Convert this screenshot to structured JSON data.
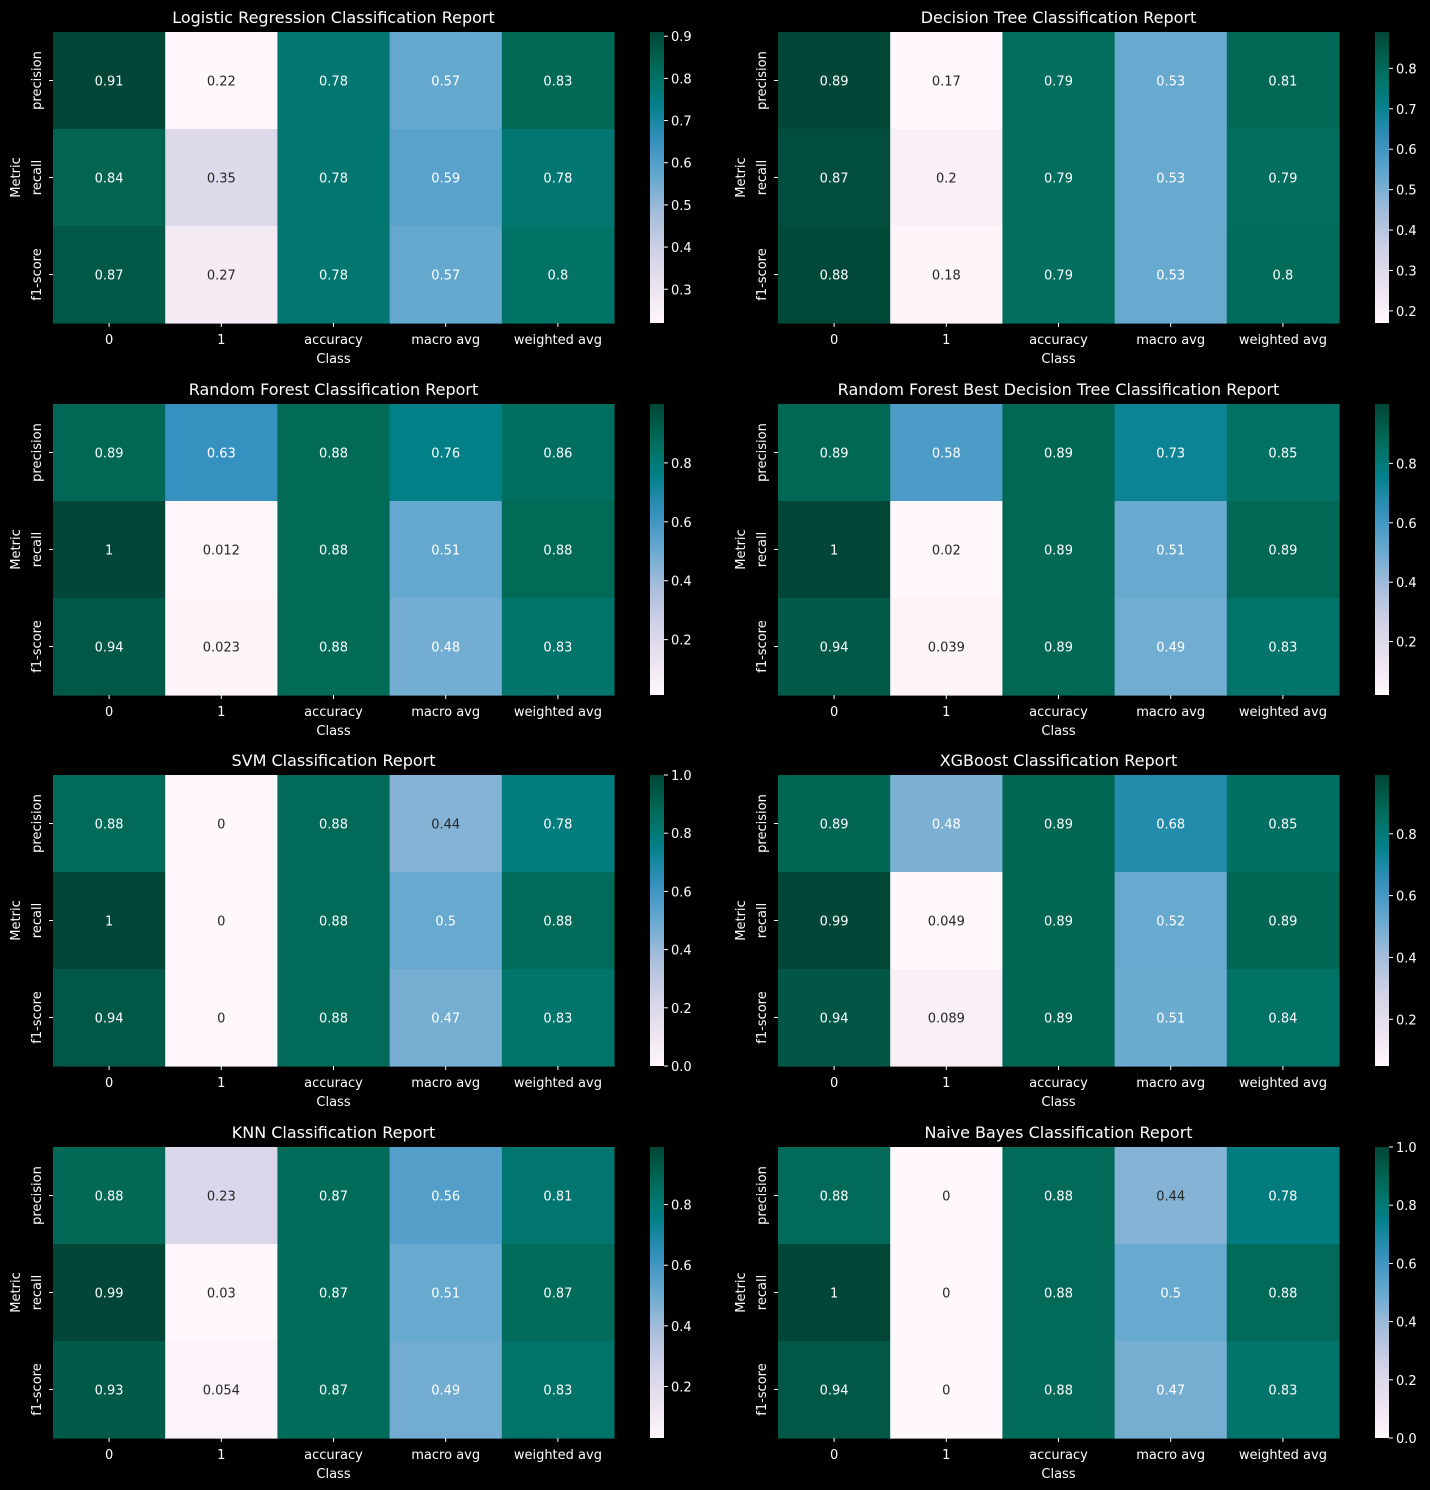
{
  "figure": {
    "background": "#000000",
    "text_color": "#ffffff",
    "colormap": "PuBuGn"
  },
  "chart_data": [
    {
      "type": "heatmap",
      "title": "Logistic Regression Classification Report",
      "xlabel": "Class",
      "ylabel": "Metric",
      "x": [
        "0",
        "1",
        "accuracy",
        "macro avg",
        "weighted avg"
      ],
      "y": [
        "precision",
        "recall",
        "f1-score"
      ],
      "values": [
        [
          0.91,
          0.22,
          0.78,
          0.57,
          0.83
        ],
        [
          0.84,
          0.35,
          0.78,
          0.59,
          0.78
        ],
        [
          0.87,
          0.27,
          0.78,
          0.57,
          0.8
        ]
      ],
      "labels": [
        [
          "0.91",
          "0.22",
          "0.78",
          "0.57",
          "0.83"
        ],
        [
          "0.84",
          "0.35",
          "0.78",
          "0.59",
          "0.78"
        ],
        [
          "0.87",
          "0.27",
          "0.78",
          "0.57",
          "0.8"
        ]
      ],
      "vmin": 0.22,
      "vmax": 0.91,
      "colorbar_ticks": [
        "0.3",
        "0.4",
        "0.5",
        "0.6",
        "0.7",
        "0.8",
        "0.9"
      ]
    },
    {
      "type": "heatmap",
      "title": "Decision Tree Classification Report",
      "xlabel": "Class",
      "ylabel": "Metric",
      "x": [
        "0",
        "1",
        "accuracy",
        "macro avg",
        "weighted avg"
      ],
      "y": [
        "precision",
        "recall",
        "f1-score"
      ],
      "values": [
        [
          0.89,
          0.17,
          0.79,
          0.53,
          0.81
        ],
        [
          0.87,
          0.2,
          0.79,
          0.53,
          0.79
        ],
        [
          0.88,
          0.18,
          0.79,
          0.53,
          0.8
        ]
      ],
      "labels": [
        [
          "0.89",
          "0.17",
          "0.79",
          "0.53",
          "0.81"
        ],
        [
          "0.87",
          "0.2",
          "0.79",
          "0.53",
          "0.79"
        ],
        [
          "0.88",
          "0.18",
          "0.79",
          "0.53",
          "0.8"
        ]
      ],
      "vmin": 0.17,
      "vmax": 0.89,
      "colorbar_ticks": [
        "0.2",
        "0.3",
        "0.4",
        "0.5",
        "0.6",
        "0.7",
        "0.8"
      ]
    },
    {
      "type": "heatmap",
      "title": "Random Forest Classification Report",
      "xlabel": "Class",
      "ylabel": "Metric",
      "x": [
        "0",
        "1",
        "accuracy",
        "macro avg",
        "weighted avg"
      ],
      "y": [
        "precision",
        "recall",
        "f1-score"
      ],
      "values": [
        [
          0.89,
          0.63,
          0.88,
          0.76,
          0.86
        ],
        [
          1.0,
          0.012,
          0.88,
          0.51,
          0.88
        ],
        [
          0.94,
          0.023,
          0.88,
          0.48,
          0.83
        ]
      ],
      "labels": [
        [
          "0.89",
          "0.63",
          "0.88",
          "0.76",
          "0.86"
        ],
        [
          "1",
          "0.012",
          "0.88",
          "0.51",
          "0.88"
        ],
        [
          "0.94",
          "0.023",
          "0.88",
          "0.48",
          "0.83"
        ]
      ],
      "vmin": 0.012,
      "vmax": 1.0,
      "colorbar_ticks": [
        "0.2",
        "0.4",
        "0.6",
        "0.8"
      ]
    },
    {
      "type": "heatmap",
      "title": "Random Forest Best Decision Tree Classification Report",
      "xlabel": "Class",
      "ylabel": "Metric",
      "x": [
        "0",
        "1",
        "accuracy",
        "macro avg",
        "weighted avg"
      ],
      "y": [
        "precision",
        "recall",
        "f1-score"
      ],
      "values": [
        [
          0.89,
          0.58,
          0.89,
          0.73,
          0.85
        ],
        [
          1.0,
          0.02,
          0.89,
          0.51,
          0.89
        ],
        [
          0.94,
          0.039,
          0.89,
          0.49,
          0.83
        ]
      ],
      "labels": [
        [
          "0.89",
          "0.58",
          "0.89",
          "0.73",
          "0.85"
        ],
        [
          "1",
          "0.02",
          "0.89",
          "0.51",
          "0.89"
        ],
        [
          "0.94",
          "0.039",
          "0.89",
          "0.49",
          "0.83"
        ]
      ],
      "vmin": 0.02,
      "vmax": 1.0,
      "colorbar_ticks": [
        "0.2",
        "0.4",
        "0.6",
        "0.8"
      ]
    },
    {
      "type": "heatmap",
      "title": "SVM Classification Report",
      "xlabel": "Class",
      "ylabel": "Metric",
      "x": [
        "0",
        "1",
        "accuracy",
        "macro avg",
        "weighted avg"
      ],
      "y": [
        "precision",
        "recall",
        "f1-score"
      ],
      "values": [
        [
          0.88,
          0,
          0.88,
          0.44,
          0.78
        ],
        [
          1.0,
          0,
          0.88,
          0.5,
          0.88
        ],
        [
          0.94,
          0,
          0.88,
          0.47,
          0.83
        ]
      ],
      "labels": [
        [
          "0.88",
          "0",
          "0.88",
          "0.44",
          "0.78"
        ],
        [
          "1",
          "0",
          "0.88",
          "0.5",
          "0.88"
        ],
        [
          "0.94",
          "0",
          "0.88",
          "0.47",
          "0.83"
        ]
      ],
      "vmin": 0.0,
      "vmax": 1.0,
      "colorbar_ticks": [
        "0.0",
        "0.2",
        "0.4",
        "0.6",
        "0.8",
        "1.0"
      ]
    },
    {
      "type": "heatmap",
      "title": "XGBoost Classification Report",
      "xlabel": "Class",
      "ylabel": "Metric",
      "x": [
        "0",
        "1",
        "accuracy",
        "macro avg",
        "weighted avg"
      ],
      "y": [
        "precision",
        "recall",
        "f1-score"
      ],
      "values": [
        [
          0.89,
          0.48,
          0.89,
          0.68,
          0.85
        ],
        [
          0.99,
          0.049,
          0.89,
          0.52,
          0.89
        ],
        [
          0.94,
          0.089,
          0.89,
          0.51,
          0.84
        ]
      ],
      "labels": [
        [
          "0.89",
          "0.48",
          "0.89",
          "0.68",
          "0.85"
        ],
        [
          "0.99",
          "0.049",
          "0.89",
          "0.52",
          "0.89"
        ],
        [
          "0.94",
          "0.089",
          "0.89",
          "0.51",
          "0.84"
        ]
      ],
      "vmin": 0.049,
      "vmax": 0.99,
      "colorbar_ticks": [
        "0.2",
        "0.4",
        "0.6",
        "0.8"
      ]
    },
    {
      "type": "heatmap",
      "title": "KNN Classification Report",
      "xlabel": "Class",
      "ylabel": "Metric",
      "x": [
        "0",
        "1",
        "accuracy",
        "macro avg",
        "weighted avg"
      ],
      "y": [
        "precision",
        "recall",
        "f1-score"
      ],
      "values": [
        [
          0.88,
          0.23,
          0.87,
          0.56,
          0.81
        ],
        [
          0.99,
          0.03,
          0.87,
          0.51,
          0.87
        ],
        [
          0.93,
          0.054,
          0.87,
          0.49,
          0.83
        ]
      ],
      "labels": [
        [
          "0.88",
          "0.23",
          "0.87",
          "0.56",
          "0.81"
        ],
        [
          "0.99",
          "0.03",
          "0.87",
          "0.51",
          "0.87"
        ],
        [
          "0.93",
          "0.054",
          "0.87",
          "0.49",
          "0.83"
        ]
      ],
      "vmin": 0.03,
      "vmax": 0.99,
      "colorbar_ticks": [
        "0.2",
        "0.4",
        "0.6",
        "0.8"
      ]
    },
    {
      "type": "heatmap",
      "title": "Naive Bayes Classification Report",
      "xlabel": "Class",
      "ylabel": "Metric",
      "x": [
        "0",
        "1",
        "accuracy",
        "macro avg",
        "weighted avg"
      ],
      "y": [
        "precision",
        "recall",
        "f1-score"
      ],
      "values": [
        [
          0.88,
          0,
          0.88,
          0.44,
          0.78
        ],
        [
          1.0,
          0,
          0.88,
          0.5,
          0.88
        ],
        [
          0.94,
          0,
          0.88,
          0.47,
          0.83
        ]
      ],
      "labels": [
        [
          "0.88",
          "0",
          "0.88",
          "0.44",
          "0.78"
        ],
        [
          "1",
          "0",
          "0.88",
          "0.5",
          "0.88"
        ],
        [
          "0.94",
          "0",
          "0.88",
          "0.47",
          "0.83"
        ]
      ],
      "vmin": 0.0,
      "vmax": 1.0,
      "colorbar_ticks": [
        "0.0",
        "0.2",
        "0.4",
        "0.6",
        "0.8",
        "1.0"
      ]
    }
  ]
}
